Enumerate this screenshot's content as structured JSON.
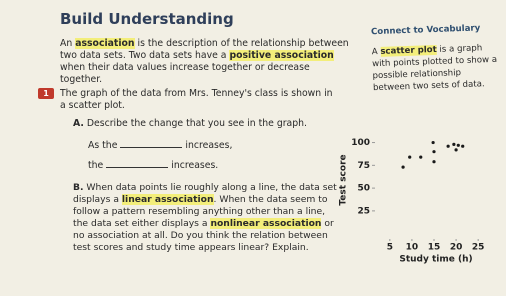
{
  "header": {
    "title": "Build Understanding"
  },
  "intro": [
    "An ",
    "association",
    " is the description of the relationship between two data sets. Two data sets have a ",
    "positive association",
    " when their data values increase together or decrease together."
  ],
  "sidebar": {
    "title": "Connect to Vocabulary",
    "text": [
      "A ",
      "scatter plot",
      " is a graph with points plotted to show a possible relationship between two sets of data."
    ]
  },
  "problem": {
    "number": "1",
    "text": "The graph of the data from Mrs. Tenney's class is shown in a scatter plot.",
    "partA": {
      "label": "A.",
      "text": "Describe the change that you see in the graph.",
      "line1": [
        "As the",
        "increases,"
      ],
      "line2": [
        "the",
        "increases."
      ]
    },
    "partB": {
      "label": "B.",
      "text": [
        "When data points lie roughly along a line, the data set displays a ",
        "linear association",
        ". When the data seem to follow a pattern resembling anything other than a line, the data set either displays a ",
        "nonlinear association",
        " or no association at all. Do you think the relation between test scores and study time appears linear? Explain."
      ]
    }
  },
  "chart_data": {
    "type": "scatter",
    "x_label": "Study time (h)",
    "y_label": "Test score",
    "color": "#1a1a1a",
    "x": [
      8,
      9.5,
      12,
      15,
      15,
      14.8,
      18.2,
      19.5,
      20.5,
      21.5,
      20
    ],
    "values": [
      73,
      84,
      84,
      79,
      90,
      100,
      96,
      98,
      97,
      96,
      92
    ],
    "xlim": [
      3,
      27
    ],
    "xticks": [
      5,
      10,
      15,
      20,
      25
    ],
    "ylim": [
      15,
      105
    ],
    "yticks": [
      25,
      50,
      75,
      100
    ]
  }
}
